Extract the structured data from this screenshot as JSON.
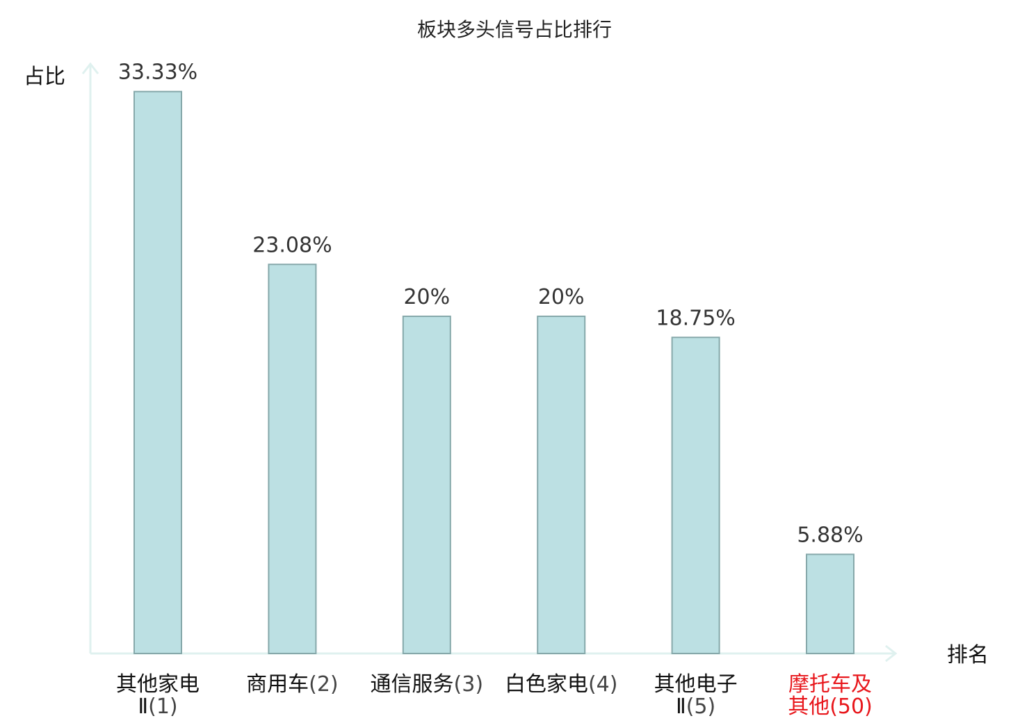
{
  "chart_data": {
    "type": "bar",
    "title": "板块多头信号占比排行",
    "ylabel": "占比",
    "xlabel": "排名",
    "ylim": [
      0,
      35
    ],
    "grid": false,
    "legend": "none",
    "bar_color": "#bce0e3",
    "bar_border_color": "#86a8aa",
    "axis_color": "#dff1ef",
    "highlight_color": "#e8161b",
    "categories": [
      {
        "name": [
          "其他家电",
          "Ⅱ"
        ],
        "rank": "(1)",
        "highlight": false
      },
      {
        "name": [
          "商用车"
        ],
        "rank": "(2)",
        "highlight": false
      },
      {
        "name": [
          "通信服务"
        ],
        "rank": "(3)",
        "highlight": false
      },
      {
        "name": [
          "白色家电"
        ],
        "rank": "(4)",
        "highlight": false
      },
      {
        "name": [
          "其他电子",
          "Ⅱ"
        ],
        "rank": "(5)",
        "highlight": false
      },
      {
        "name": [
          "摩托车及",
          "其他"
        ],
        "rank": "(50)",
        "highlight": true
      }
    ],
    "values": [
      33.33,
      23.08,
      20,
      20,
      18.75,
      5.88
    ],
    "value_labels": [
      "33.33%",
      "23.08%",
      "20%",
      "20%",
      "18.75%",
      "5.88%"
    ]
  }
}
